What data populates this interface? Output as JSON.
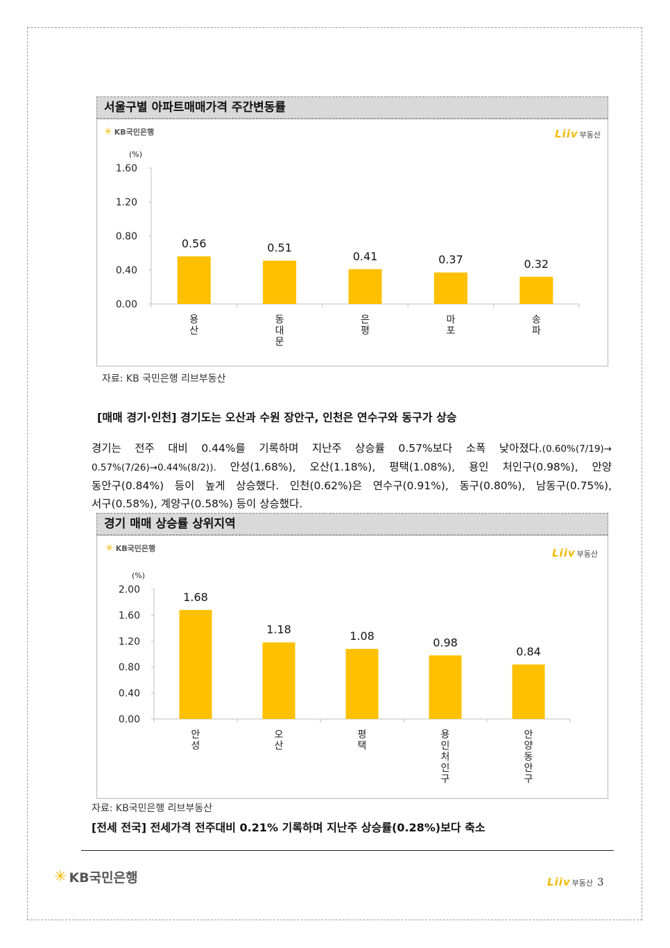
{
  "chart1": {
    "section_title": "서울구별 아파트매매가격 주간변동률",
    "kb_logo": "KB국민은행",
    "liiv_mark": "Liiv",
    "liiv_sub": "부동산",
    "source": "자료: KB 국민은행 리브부동산"
  },
  "heading1": "[매매 경기·인천] 경기도는 오산과 수원 장안구, 인천은 연수구와 동구가 상승",
  "paragraph": {
    "line1": "경기는 전주 대비 0.44%를 기록하며 지난주 상승률 0.57%보다 소폭 낮아졌다.",
    "line1_small": "(0.60%(7/19)→",
    "line2_small": "0.57%(7/26)→0.44%(8/2)).",
    "line2": " 안성(1.68%), 오산(1.18%), 평택(1.08%), 용인 처인구(0.98%), 안양",
    "line3": "동안구(0.84%) 등이 높게 상승했다. 인천(0.62%)은 연수구(0.91%), 동구(0.80%), 남동구(0.75%),",
    "line4": "서구(0.58%), 계양구(0.58%) 등이 상승했다."
  },
  "chart2": {
    "section_title": "경기 매매 상승률 상위지역",
    "kb_logo": "KB국민은행",
    "liiv_mark": "Liiv",
    "liiv_sub": "부동산",
    "source": "자료: KB국민은행 리브부동산"
  },
  "heading2": "[전세 전국] 전세가격 전주대비 0.21% 기록하며 지난주 상승률(0.28%)보다 축소",
  "footer": {
    "kb_logo": "KB국민은행",
    "liiv_mark": "Liiv",
    "liiv_sub": "부동산",
    "page_number": "3"
  },
  "colors": {
    "bar": "#FFC000",
    "kb_star": "#F5B800",
    "title_bg": "#D9D9D9"
  },
  "chart_data": [
    {
      "type": "bar",
      "title": "서울구별 아파트매매가격 주간변동률",
      "unit": "(%)",
      "categories": [
        "용산",
        "동대문",
        "은평",
        "마포",
        "송파"
      ],
      "values": [
        0.56,
        0.51,
        0.41,
        0.37,
        0.32
      ],
      "value_labels": [
        "0.56",
        "0.51",
        "0.41",
        "0.37",
        "0.32"
      ],
      "yticks": [
        "0.00",
        "0.40",
        "0.80",
        "1.20",
        "1.60"
      ],
      "ylim": [
        0,
        1.6
      ],
      "grid": false
    },
    {
      "type": "bar",
      "title": "경기 매매 상승률 상위지역",
      "unit": "(%)",
      "categories": [
        "안성",
        "오산",
        "평택",
        "용인처인구",
        "안양동안구"
      ],
      "values": [
        1.68,
        1.18,
        1.08,
        0.98,
        0.84
      ],
      "value_labels": [
        "1.68",
        "1.18",
        "1.08",
        "0.98",
        "0.84"
      ],
      "yticks": [
        "0.00",
        "0.40",
        "0.80",
        "1.20",
        "1.60",
        "2.00"
      ],
      "ylim": [
        0,
        2.0
      ],
      "grid": false
    }
  ]
}
